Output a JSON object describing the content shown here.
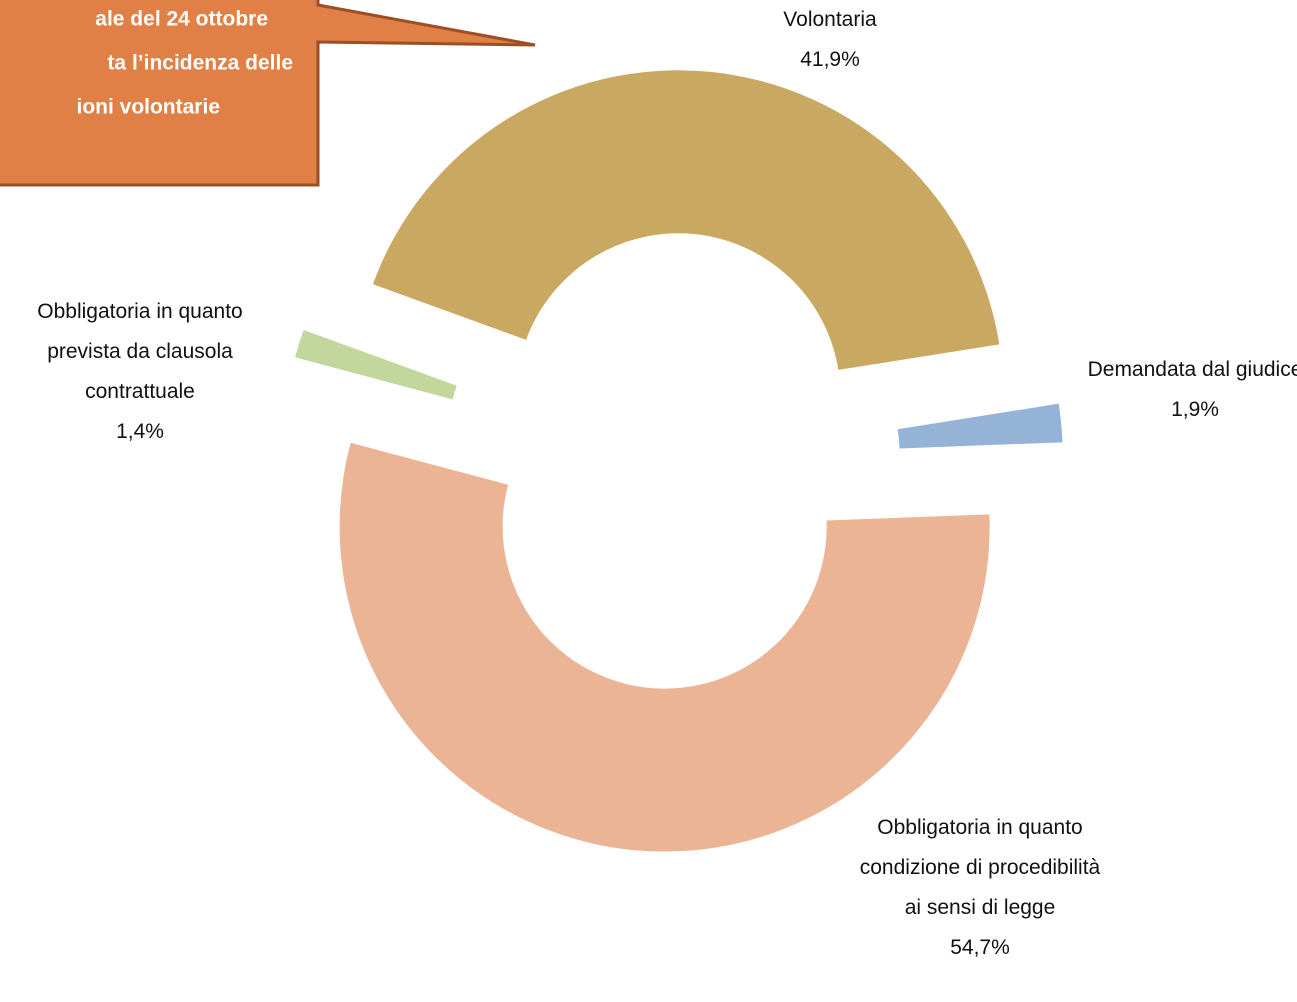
{
  "chart_data": {
    "type": "donut",
    "categories": [
      "Volontaria",
      "Demandata dal giudice",
      "Obbligatoria in quanto condizione di procedibilità ai sensi di legge",
      "Obbligatoria in quanto prevista da clausola contrattuale"
    ],
    "values": [
      41.9,
      1.9,
      54.7,
      1.4
    ],
    "value_labels": [
      "41,9%",
      "1,9%",
      "54,7%",
      "1,4%"
    ],
    "colors": [
      "#c9a862",
      "#95b3d7",
      "#ebb495",
      "#c3d69b"
    ],
    "annotations": [
      "ale del 24 ottobre",
      "ta l’incidenza delle",
      "ioni volontarie"
    ]
  }
}
